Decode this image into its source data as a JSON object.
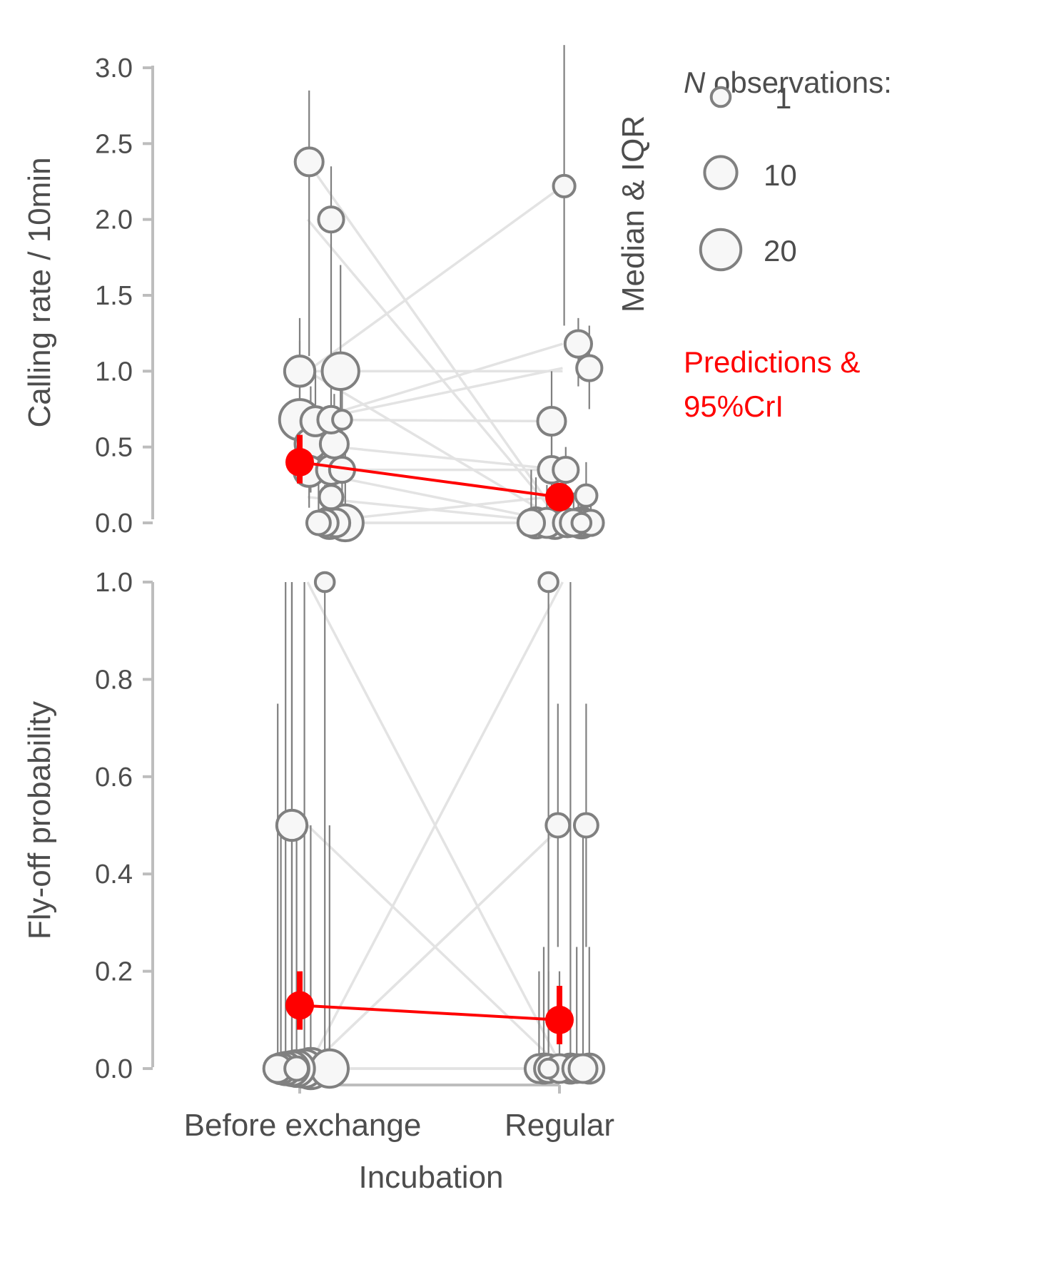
{
  "chart_data": [
    {
      "type": "scatter",
      "panel": "top",
      "ylabel": "Calling rate / 10min",
      "ylim": [
        0,
        3.0
      ],
      "yticks": [
        "0.0",
        "0.5",
        "1.0",
        "1.5",
        "2.0",
        "2.5",
        "3.0"
      ],
      "ytick_values": [
        0,
        0.5,
        1.0,
        1.5,
        2.0,
        2.5,
        3.0
      ],
      "categories": [
        "Before exchange",
        "Regular"
      ],
      "pairs": [
        [
          2.38,
          0.0
        ],
        [
          2.0,
          0.0
        ],
        [
          1.0,
          2.22
        ],
        [
          1.0,
          1.0
        ],
        [
          1.0,
          0.0
        ],
        [
          0.68,
          0.67
        ],
        [
          0.67,
          1.18
        ],
        [
          0.52,
          0.35
        ],
        [
          0.35,
          0.35
        ],
        [
          0.67,
          1.02
        ],
        [
          0.34,
          0.0
        ],
        [
          0.0,
          0.18
        ],
        [
          0.17,
          0.0
        ],
        [
          0.0,
          0.0
        ],
        [
          0.0,
          0.0
        ]
      ],
      "points": [
        {
          "g": 0,
          "j": 0.06,
          "y": 2.38,
          "n": 6,
          "lo": 1.1,
          "hi": 2.85
        },
        {
          "g": 0,
          "j": 0.2,
          "y": 2.0,
          "n": 4,
          "lo": 0.9,
          "hi": 2.35
        },
        {
          "g": 0,
          "j": 0.0,
          "y": 1.0,
          "n": 8,
          "lo": 0.6,
          "hi": 1.35
        },
        {
          "g": 0,
          "j": 0.26,
          "y": 1.0,
          "n": 15,
          "lo": 0.4,
          "hi": 1.7
        },
        {
          "g": 0,
          "j": 0.0,
          "y": 0.68,
          "n": 20,
          "lo": 0.3,
          "hi": 1.2
        },
        {
          "g": 0,
          "j": 0.1,
          "y": 0.67,
          "n": 7,
          "lo": 0.3,
          "hi": 1.0
        },
        {
          "g": 0,
          "j": 0.2,
          "y": 0.68,
          "n": 5,
          "lo": 0.3,
          "hi": 0.95
        },
        {
          "g": 0,
          "j": 0.27,
          "y": 0.68,
          "n": 1,
          "lo": 0.4,
          "hi": 0.9
        },
        {
          "g": 0,
          "j": 0.07,
          "y": 0.52,
          "n": 9,
          "lo": 0.2,
          "hi": 0.9
        },
        {
          "g": 0,
          "j": 0.22,
          "y": 0.52,
          "n": 6,
          "lo": 0.2,
          "hi": 0.85
        },
        {
          "g": 0,
          "j": 0.06,
          "y": 0.34,
          "n": 8,
          "lo": 0.1,
          "hi": 0.6
        },
        {
          "g": 0,
          "j": 0.2,
          "y": 0.35,
          "n": 7,
          "lo": 0.1,
          "hi": 0.6
        },
        {
          "g": 0,
          "j": 0.27,
          "y": 0.35,
          "n": 4,
          "lo": 0.1,
          "hi": 0.55
        },
        {
          "g": 0,
          "j": 0.2,
          "y": 0.17,
          "n": 3,
          "lo": 0.0,
          "hi": 0.4
        },
        {
          "g": 0,
          "j": 0.12,
          "y": 0.0,
          "n": 3,
          "lo": 0.0,
          "hi": 0.3
        },
        {
          "g": 0,
          "j": 0.16,
          "y": 0.0,
          "n": 5,
          "lo": 0.0,
          "hi": 0.25
        },
        {
          "g": 0,
          "j": 0.19,
          "y": 0.0,
          "n": 9,
          "lo": 0.0,
          "hi": 0.3
        },
        {
          "g": 0,
          "j": 0.23,
          "y": 0.0,
          "n": 6,
          "lo": 0.0,
          "hi": 0.2
        },
        {
          "g": 0,
          "j": 0.29,
          "y": 0.0,
          "n": 14,
          "lo": 0.0,
          "hi": 0.5
        },
        {
          "g": 1,
          "j": 0.03,
          "y": 2.22,
          "n": 2,
          "lo": 1.3,
          "hi": 3.15
        },
        {
          "g": 1,
          "j": 0.12,
          "y": 1.18,
          "n": 5,
          "lo": 0.9,
          "hi": 1.35
        },
        {
          "g": 1,
          "j": 0.19,
          "y": 1.02,
          "n": 4,
          "lo": 0.75,
          "hi": 1.3
        },
        {
          "g": 1,
          "j": -0.05,
          "y": 0.67,
          "n": 6,
          "lo": 0.3,
          "hi": 1.0
        },
        {
          "g": 1,
          "j": -0.05,
          "y": 0.35,
          "n": 5,
          "lo": 0.1,
          "hi": 0.6
        },
        {
          "g": 1,
          "j": 0.04,
          "y": 0.35,
          "n": 4,
          "lo": 0.1,
          "hi": 0.5
        },
        {
          "g": 1,
          "j": 0.17,
          "y": 0.18,
          "n": 2,
          "lo": 0.0,
          "hi": 0.4
        },
        {
          "g": 1,
          "j": -0.18,
          "y": 0.0,
          "n": 5,
          "lo": 0.0,
          "hi": 0.35
        },
        {
          "g": 1,
          "j": -0.15,
          "y": 0.0,
          "n": 8,
          "lo": 0.0,
          "hi": 0.3
        },
        {
          "g": 1,
          "j": -0.08,
          "y": 0.0,
          "n": 7,
          "lo": 0.0,
          "hi": 0.25
        },
        {
          "g": 1,
          "j": -0.03,
          "y": 0.0,
          "n": 9,
          "lo": 0.0,
          "hi": 0.3
        },
        {
          "g": 1,
          "j": 0.05,
          "y": 0.0,
          "n": 6,
          "lo": 0.0,
          "hi": 0.2
        },
        {
          "g": 1,
          "j": 0.09,
          "y": 0.0,
          "n": 5,
          "lo": 0.0,
          "hi": 0.2
        },
        {
          "g": 1,
          "j": 0.12,
          "y": 0.0,
          "n": 6,
          "lo": 0.0,
          "hi": 0.2
        },
        {
          "g": 1,
          "j": 0.14,
          "y": 0.0,
          "n": 8,
          "lo": 0.0,
          "hi": 0.25
        },
        {
          "g": 1,
          "j": 0.14,
          "y": 0.0,
          "n": 1,
          "lo": 0.0,
          "hi": 0.0
        },
        {
          "g": 1,
          "j": 0.2,
          "y": 0.0,
          "n": 4,
          "lo": 0.0,
          "hi": 0.2
        }
      ],
      "predictions": [
        {
          "g": 0,
          "j": 0.0,
          "y": 0.4,
          "lo": 0.26,
          "hi": 0.58
        },
        {
          "g": 1,
          "j": 0.0,
          "y": 0.17,
          "lo": 0.1,
          "hi": 0.26
        }
      ]
    },
    {
      "type": "scatter",
      "panel": "bottom",
      "ylabel": "Fly-off probability",
      "xlabel": "Incubation",
      "ylim": [
        0,
        1.0
      ],
      "yticks": [
        "0.0",
        "0.2",
        "0.4",
        "0.6",
        "0.8",
        "1.0"
      ],
      "ytick_values": [
        0,
        0.2,
        0.4,
        0.6,
        0.8,
        1.0
      ],
      "categories": [
        "Before exchange",
        "Regular"
      ],
      "pairs": [
        [
          1.0,
          0.0
        ],
        [
          0.0,
          1.0
        ],
        [
          0.5,
          0.0
        ],
        [
          0.0,
          0.5
        ],
        [
          0.0,
          0.5
        ],
        [
          0.0,
          0.0
        ],
        [
          0.0,
          0.0
        ],
        [
          0.0,
          0.0
        ],
        [
          0.0,
          0.0
        ],
        [
          0.0,
          0.0
        ]
      ],
      "points": [
        {
          "g": 0,
          "j": 0.16,
          "y": 1.0,
          "n": 1,
          "lo": 0.0,
          "hi": 1.0
        },
        {
          "g": 0,
          "j": -0.05,
          "y": 0.5,
          "n": 8,
          "lo": 0.0,
          "hi": 1.0
        },
        {
          "g": 0,
          "j": -0.14,
          "y": 0.0,
          "n": 6,
          "lo": 0.0,
          "hi": 0.75
        },
        {
          "g": 0,
          "j": -0.12,
          "y": 0.0,
          "n": 8,
          "lo": 0.0,
          "hi": 0.5
        },
        {
          "g": 0,
          "j": -0.09,
          "y": 0.0,
          "n": 10,
          "lo": 0.0,
          "hi": 1.0
        },
        {
          "g": 0,
          "j": -0.05,
          "y": 0.0,
          "n": 12,
          "lo": 0.0,
          "hi": 1.0
        },
        {
          "g": 0,
          "j": -0.02,
          "y": 0.0,
          "n": 14,
          "lo": 0.0,
          "hi": 0.5
        },
        {
          "g": 0,
          "j": -0.02,
          "y": 0.0,
          "n": 3,
          "lo": 0.0,
          "hi": 0.0
        },
        {
          "g": 0,
          "j": 0.03,
          "y": 0.0,
          "n": 16,
          "lo": 0.0,
          "hi": 1.0
        },
        {
          "g": 0,
          "j": 0.07,
          "y": 0.0,
          "n": 20,
          "lo": 0.0,
          "hi": 0.5
        },
        {
          "g": 0,
          "j": 0.19,
          "y": 0.0,
          "n": 16,
          "lo": 0.0,
          "hi": 0.5
        },
        {
          "g": 1,
          "j": -0.07,
          "y": 1.0,
          "n": 1,
          "lo": 0.0,
          "hi": 1.0
        },
        {
          "g": 1,
          "j": -0.01,
          "y": 0.5,
          "n": 3,
          "lo": 0.25,
          "hi": 0.75
        },
        {
          "g": 1,
          "j": 0.17,
          "y": 0.5,
          "n": 3,
          "lo": 0.25,
          "hi": 0.75
        },
        {
          "g": 1,
          "j": -0.13,
          "y": 0.0,
          "n": 6,
          "lo": 0.0,
          "hi": 0.2
        },
        {
          "g": 1,
          "j": -0.1,
          "y": 0.0,
          "n": 7,
          "lo": 0.0,
          "hi": 0.25
        },
        {
          "g": 1,
          "j": -0.07,
          "y": 0.0,
          "n": 6,
          "lo": 0.0,
          "hi": 0.2
        },
        {
          "g": 1,
          "j": -0.07,
          "y": 0.0,
          "n": 1,
          "lo": 0.0,
          "hi": 0.0
        },
        {
          "g": 1,
          "j": 0.0,
          "y": 0.0,
          "n": 6,
          "lo": 0.0,
          "hi": 0.2
        },
        {
          "g": 1,
          "j": 0.07,
          "y": 0.0,
          "n": 7,
          "lo": 0.0,
          "hi": 1.0
        },
        {
          "g": 1,
          "j": 0.11,
          "y": 0.0,
          "n": 6,
          "lo": 0.0,
          "hi": 0.25
        },
        {
          "g": 1,
          "j": 0.15,
          "y": 0.0,
          "n": 6,
          "lo": 0.0,
          "hi": 0.5
        },
        {
          "g": 1,
          "j": 0.19,
          "y": 0.0,
          "n": 7,
          "lo": 0.0,
          "hi": 0.25
        }
      ],
      "predictions": [
        {
          "g": 0,
          "j": 0.0,
          "y": 0.13,
          "lo": 0.08,
          "hi": 0.2
        },
        {
          "g": 1,
          "j": 0.0,
          "y": 0.1,
          "lo": 0.05,
          "hi": 0.17
        }
      ]
    }
  ],
  "legend": {
    "title_italic": "N",
    "title_rest": " observations:",
    "items": [
      {
        "label": "1",
        "n": 1
      },
      {
        "label": "10",
        "n": 10
      },
      {
        "label": "20",
        "n": 20
      }
    ],
    "median_label": "Median & IQR",
    "prediction_label_line1": "Predictions &",
    "prediction_label_line2": "95%CrI"
  },
  "colors": {
    "point_fill": "#f7f7f7",
    "point_stroke": "#808080",
    "errorbar": "#808080",
    "pair_line": "#e3e3e3",
    "axis": "#bdbdbd",
    "prediction": "#ff0000",
    "text": "#4d4d4d"
  }
}
